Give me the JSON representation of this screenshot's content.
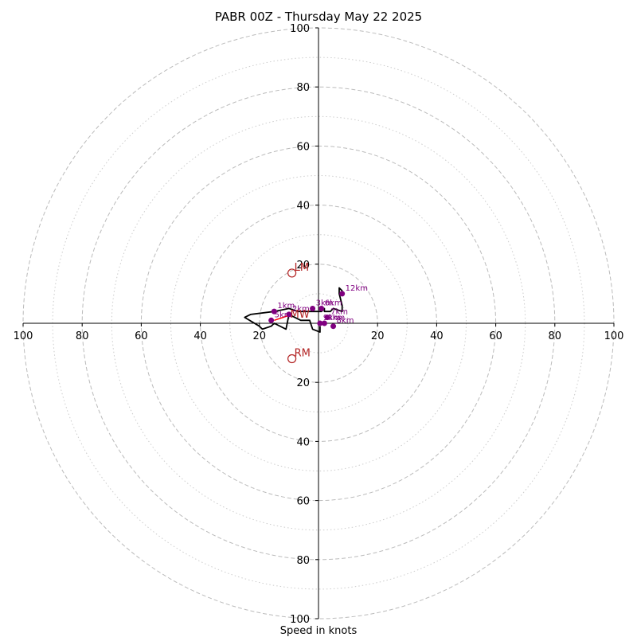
{
  "chart_data": {
    "type": "hodograph",
    "title": "PABR 00Z - Thursday May 22 2025",
    "xlabel": "Speed in knots",
    "units": "knots",
    "range": [
      -100,
      100
    ],
    "ring_major": [
      20,
      40,
      60,
      80,
      100
    ],
    "ring_minor": [
      10,
      30,
      50,
      70,
      90
    ],
    "x_tick_labels": [
      "100",
      "80",
      "60",
      "40",
      "20",
      "",
      "20",
      "40",
      "60",
      "80",
      "100"
    ],
    "x_tick_values": [
      -100,
      -80,
      -60,
      -40,
      -20,
      0,
      20,
      40,
      60,
      80,
      100
    ],
    "y_tick_labels": [
      "100",
      "80",
      "60",
      "40",
      "20",
      "",
      "20",
      "40",
      "60",
      "80",
      "100"
    ],
    "y_tick_values": [
      100,
      80,
      60,
      40,
      20,
      0,
      -20,
      -40,
      -60,
      -80,
      -100
    ],
    "grid": true,
    "colors": {
      "trace": "#000000",
      "height_points": "#800080",
      "motion": "#b22222",
      "mean_wind_vector": "#ff0000",
      "grid": "#bbbbbb"
    },
    "hodograph_trace": [
      [
        0.5,
        -1
      ],
      [
        0.5,
        -3
      ],
      [
        -2,
        -2
      ],
      [
        -3,
        1
      ],
      [
        -4,
        1
      ],
      [
        -6,
        1
      ],
      [
        -10,
        3
      ],
      [
        -11,
        -2
      ],
      [
        -15,
        0
      ],
      [
        -16,
        -1
      ],
      [
        -19,
        -2
      ],
      [
        -20,
        -1
      ],
      [
        -25,
        2
      ],
      [
        -23,
        3
      ],
      [
        -15,
        4
      ],
      [
        -10,
        5
      ],
      [
        -7,
        4
      ],
      [
        -3,
        4
      ],
      [
        -1,
        4
      ],
      [
        0,
        4
      ],
      [
        1,
        4
      ],
      [
        2,
        5
      ],
      [
        2,
        4
      ],
      [
        4,
        4
      ],
      [
        5,
        5
      ],
      [
        8,
        4
      ],
      [
        8,
        6
      ],
      [
        7,
        10
      ],
      [
        7,
        12
      ],
      [
        8,
        11
      ],
      [
        8,
        10
      ]
    ],
    "height_points": [
      {
        "label": "1km",
        "u": -15,
        "v": 4
      },
      {
        "label": "2km",
        "u": -10,
        "v": 3
      },
      {
        "label": "3km",
        "u": -2,
        "v": 5
      },
      {
        "label": "4km",
        "u": 2,
        "v": 0
      },
      {
        "label": "5km",
        "u": -16,
        "v": 1
      },
      {
        "label": "6km",
        "u": 1,
        "v": 5
      },
      {
        "label": "7km",
        "u": 3,
        "v": 2
      },
      {
        "label": "8km",
        "u": 5,
        "v": -1
      },
      {
        "label": "9km",
        "u": 0.5,
        "v": 0
      },
      {
        "label": "12km",
        "u": 8,
        "v": 10
      }
    ],
    "storm_motion": [
      {
        "label": "LM",
        "u": -9,
        "v": 17
      },
      {
        "label": "RM",
        "u": -9,
        "v": -12
      }
    ],
    "mean_wind": {
      "label": "MW",
      "u": -9,
      "v": 3
    }
  }
}
